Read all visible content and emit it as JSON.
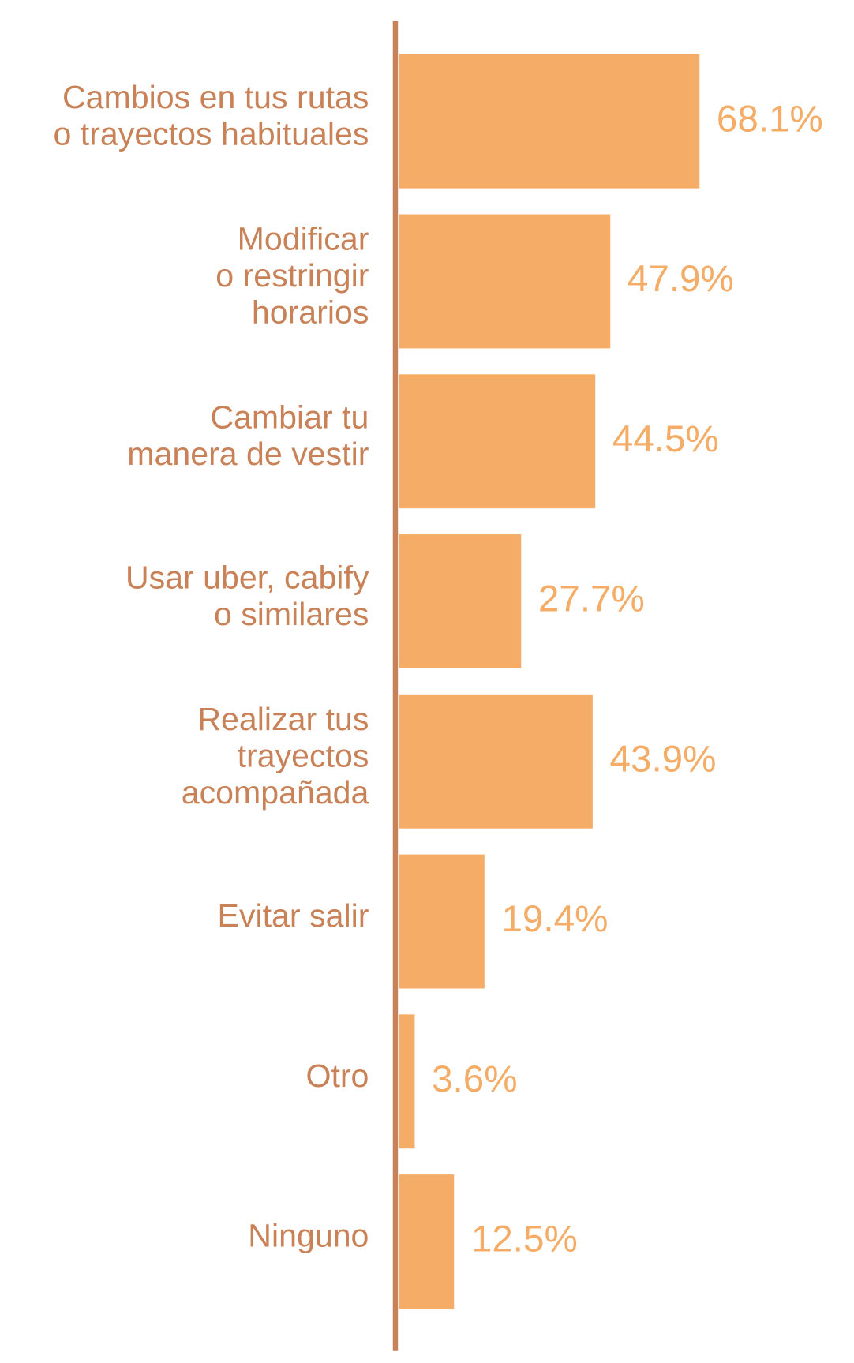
{
  "chart_data": {
    "type": "bar",
    "orientation": "horizontal",
    "categories": [
      [
        "Cambios en tus rutas",
        "o trayectos habituales"
      ],
      [
        "Modificar",
        "o restringir",
        "horarios"
      ],
      [
        "Cambiar tu",
        "manera de vestir"
      ],
      [
        "Usar uber, cabify",
        "o similares"
      ],
      [
        "Realizar tus",
        "trayectos",
        "acompañada"
      ],
      [
        "Evitar salir"
      ],
      [
        "Otro"
      ],
      [
        "Ninguno"
      ]
    ],
    "values": [
      68.1,
      47.9,
      44.5,
      27.7,
      43.9,
      19.4,
      3.6,
      12.5
    ],
    "value_labels": [
      "68.1%",
      "47.9%",
      "44.5%",
      "27.7%",
      "43.9%",
      "19.4%",
      "3.6%",
      "12.5%"
    ],
    "color": "#f4ac66",
    "xlim": [
      0,
      100
    ]
  }
}
